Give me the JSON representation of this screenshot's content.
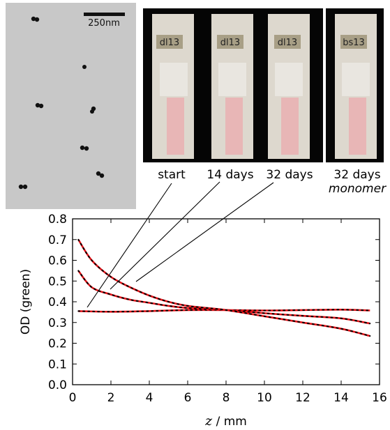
{
  "tem": {
    "scale_label": "250nm"
  },
  "photos": {
    "cuvettes": [
      {
        "label": "dl13",
        "caption": "start"
      },
      {
        "label": "dl13",
        "caption": "14 days"
      },
      {
        "label": "dl13",
        "caption": "32 days"
      },
      {
        "label": "bs13",
        "caption": "32 days",
        "caption2": "monomer"
      }
    ]
  },
  "colors": {
    "fit": "#e8141a",
    "data": "#000000",
    "sample": "#e8b6b6"
  },
  "chart_data": {
    "type": "line",
    "title": "",
    "xlabel_var": "z",
    "xlabel_unit": " / mm",
    "ylabel": "OD (green)",
    "xlim": [
      0,
      16
    ],
    "ylim": [
      0.0,
      0.8
    ],
    "xticks": [
      "0",
      "2",
      "4",
      "6",
      "8",
      "10",
      "12",
      "14",
      "16"
    ],
    "yticks": [
      "0.0",
      "0.1",
      "0.2",
      "0.3",
      "0.4",
      "0.5",
      "0.6",
      "0.7",
      "0.8"
    ],
    "grid": false,
    "series": [
      {
        "x": [
          0.3,
          2,
          4,
          6,
          8,
          10,
          12,
          14,
          15.5
        ],
        "y": [
          0.355,
          0.352,
          0.355,
          0.36,
          0.36,
          0.358,
          0.36,
          0.362,
          0.358
        ]
      },
      {
        "x": [
          0.3,
          1,
          2,
          3,
          4,
          5,
          6,
          8,
          10,
          12,
          14,
          15.5
        ],
        "y": [
          0.55,
          0.47,
          0.435,
          0.41,
          0.395,
          0.38,
          0.37,
          0.36,
          0.345,
          0.332,
          0.32,
          0.295
        ]
      },
      {
        "x": [
          0.3,
          1,
          2,
          3,
          4,
          5,
          6,
          7,
          8,
          10,
          12,
          14,
          15.5
        ],
        "y": [
          0.7,
          0.6,
          0.52,
          0.47,
          0.43,
          0.4,
          0.38,
          0.37,
          0.36,
          0.33,
          0.3,
          0.27,
          0.235
        ]
      }
    ]
  }
}
